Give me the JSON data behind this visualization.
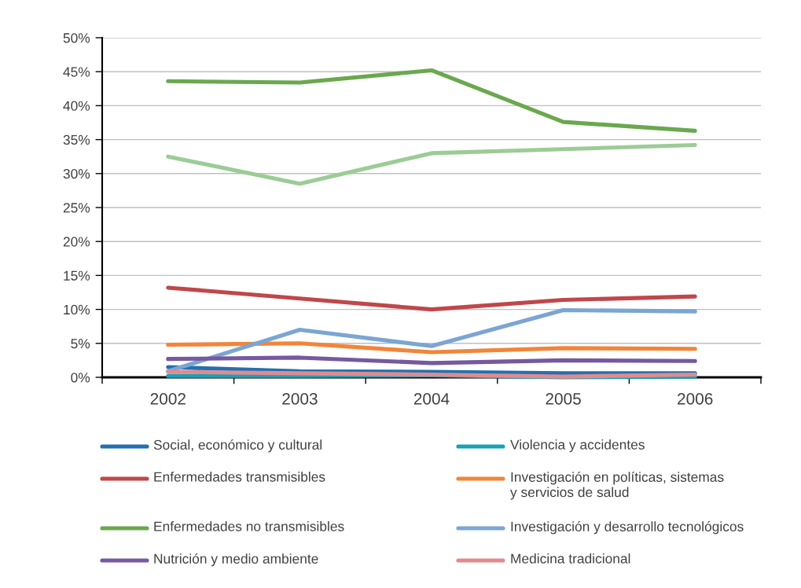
{
  "chart_data": {
    "type": "line",
    "categories": [
      "2002",
      "2003",
      "2004",
      "2005",
      "2006"
    ],
    "ylim": [
      0,
      50
    ],
    "yticks": [
      {
        "value": 0,
        "label": "0%"
      },
      {
        "value": 5,
        "label": "5%"
      },
      {
        "value": 10,
        "label": "10%"
      },
      {
        "value": 15,
        "label": "15%"
      },
      {
        "value": 20,
        "label": "20%"
      },
      {
        "value": 25,
        "label": "25%"
      },
      {
        "value": 30,
        "label": "30%"
      },
      {
        "value": 35,
        "label": "35%"
      },
      {
        "value": 40,
        "label": "40%"
      },
      {
        "value": 45,
        "label": "45%"
      },
      {
        "value": 50,
        "label": "50%"
      }
    ],
    "grid": "y",
    "legend": "bottom",
    "line_style": "solid",
    "series": [
      {
        "name": "Social, económico y cultural",
        "color": "#2171b0",
        "values": [
          1.5,
          0.9,
          0.8,
          0.6,
          0.6
        ]
      },
      {
        "name": "Violencia y accidentes",
        "color": "#17a2b8",
        "values": [
          0.2,
          0.2,
          0.3,
          0.0,
          0.1
        ]
      },
      {
        "name": "Enfermedades transmisibles",
        "color": "#c0474a",
        "values": [
          13.2,
          11.6,
          10.0,
          11.4,
          11.9
        ]
      },
      {
        "name": "Investigación en políticas, sistemas\ny servicios de salud",
        "color": "#f2853a",
        "values": [
          4.8,
          5.0,
          3.7,
          4.3,
          4.2
        ]
      },
      {
        "name": "Enfermedades no transmisibles",
        "color": "#6aa84f",
        "values": [
          43.6,
          43.4,
          45.2,
          37.6,
          36.3
        ]
      },
      {
        "color": "#9ccc95",
        "values": [
          32.5,
          28.5,
          33.0,
          33.6,
          34.2
        ]
      },
      {
        "name": "Investigación y desarrollo tecnológicos",
        "color": "#7ba5d3",
        "values": [
          0.9,
          7.0,
          4.6,
          9.9,
          9.7
        ]
      },
      {
        "name": "Nutrición y medio ambiente",
        "color": "#7659a0",
        "values": [
          2.7,
          2.9,
          2.1,
          2.5,
          2.4
        ]
      },
      {
        "name": "Medicina tradicional",
        "color": "#e38a8f",
        "values": [
          0.8,
          0.6,
          0.4,
          0.1,
          0.4
        ]
      }
    ]
  }
}
